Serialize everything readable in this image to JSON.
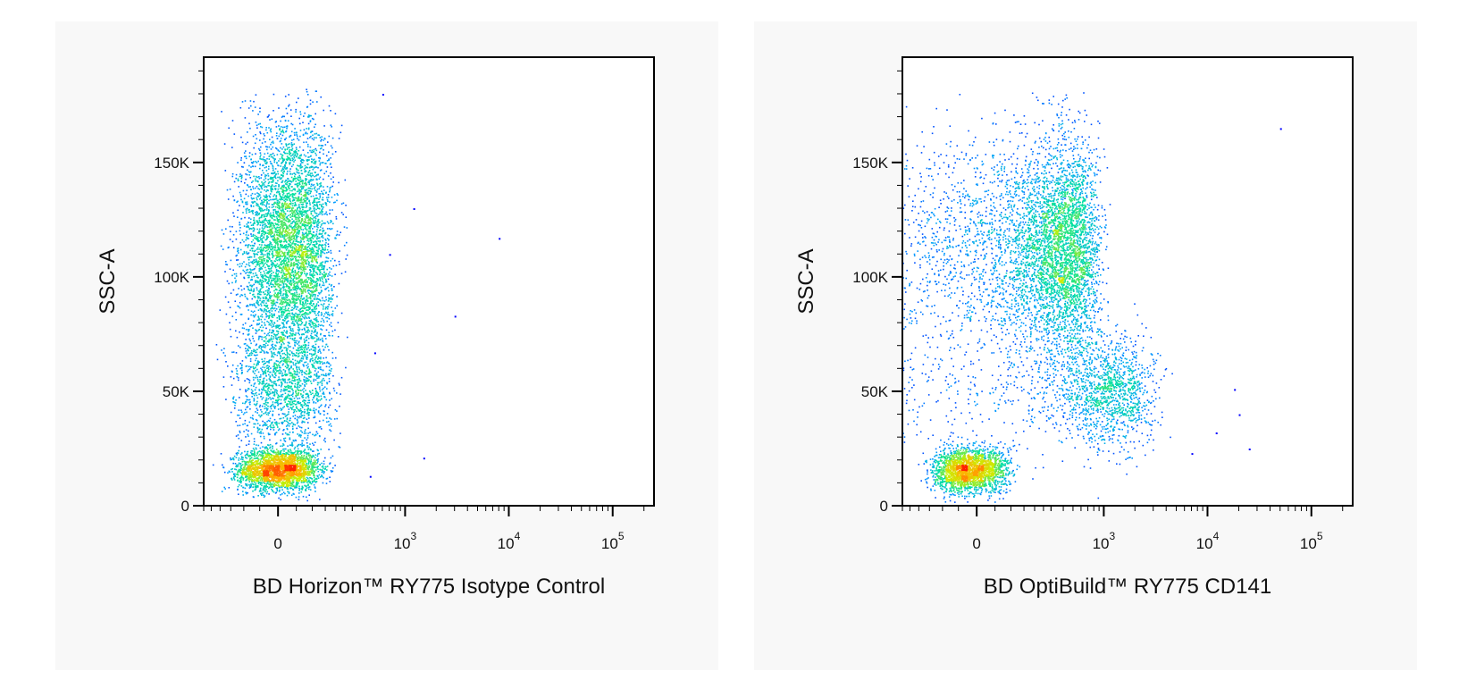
{
  "chart_data": [
    {
      "type": "scatter",
      "subtype": "density-dot-plot",
      "xlabel": "BD Horizon™ RY775 Isotype Control",
      "ylabel": "SSC-A",
      "x_scale": "biexponential",
      "xticks": [
        {
          "value": 0,
          "base": "0",
          "exp": ""
        },
        {
          "value": 1000,
          "base": "10",
          "exp": "3"
        },
        {
          "value": 10000,
          "base": "10",
          "exp": "4"
        },
        {
          "value": 100000,
          "base": "10",
          "exp": "5"
        }
      ],
      "yticks": [
        {
          "value": 0,
          "label": "0"
        },
        {
          "value": 50000,
          "label": "50K"
        },
        {
          "value": 100000,
          "label": "100K"
        },
        {
          "value": 150000,
          "label": "150K"
        }
      ],
      "ylim": [
        0,
        196000
      ],
      "grid": false,
      "colormap": [
        "#0000ff",
        "#00a0ff",
        "#00e0a0",
        "#c8f000",
        "#ffb000",
        "#ff2000"
      ],
      "populations": [
        {
          "x_center": 0,
          "x_spread": 60,
          "y_center": 16000,
          "y_spread": 4500,
          "weight": 0.28
        },
        {
          "x_center": 30,
          "x_spread": 70,
          "y_center": 112000,
          "y_spread": 28000,
          "weight": 0.58
        },
        {
          "x_center": 20,
          "x_spread": 75,
          "y_center": 50000,
          "y_spread": 14000,
          "weight": 0.14
        }
      ],
      "outliers": [
        {
          "x": 600,
          "y": 180000
        },
        {
          "x": 1200,
          "y": 130000
        },
        {
          "x": 8000,
          "y": 117000
        },
        {
          "x": 3000,
          "y": 83000
        },
        {
          "x": 1500,
          "y": 21000
        },
        {
          "x": 500,
          "y": 67000
        },
        {
          "x": 700,
          "y": 110000
        },
        {
          "x": 450,
          "y": 13000
        }
      ]
    },
    {
      "type": "scatter",
      "subtype": "density-dot-plot",
      "xlabel": "BD OptiBuild™ RY775 CD141",
      "ylabel": "SSC-A",
      "x_scale": "biexponential",
      "xticks": [
        {
          "value": 0,
          "base": "0",
          "exp": ""
        },
        {
          "value": 1000,
          "base": "10",
          "exp": "3"
        },
        {
          "value": 10000,
          "base": "10",
          "exp": "4"
        },
        {
          "value": 100000,
          "base": "10",
          "exp": "5"
        }
      ],
      "yticks": [
        {
          "value": 0,
          "label": "0"
        },
        {
          "value": 50000,
          "label": "50K"
        },
        {
          "value": 100000,
          "label": "100K"
        },
        {
          "value": 150000,
          "label": "150K"
        }
      ],
      "ylim": [
        0,
        196000
      ],
      "grid": false,
      "colormap": [
        "#0000ff",
        "#00a0ff",
        "#00e0a0",
        "#c8f000",
        "#ffb000",
        "#ff2000"
      ],
      "populations": [
        {
          "x_center": -20,
          "x_spread": 55,
          "y_center": 16000,
          "y_spread": 5000,
          "weight": 0.25
        },
        {
          "x_center": 300,
          "x_spread": 260,
          "y_center": 112000,
          "y_spread": 24000,
          "weight": 0.57
        },
        {
          "x_center": 900,
          "x_spread": 900,
          "y_center": 50000,
          "y_spread": 12000,
          "weight": 0.18
        }
      ],
      "outliers": [
        {
          "x": 50000,
          "y": 165000
        },
        {
          "x": 20000,
          "y": 40000
        },
        {
          "x": 25000,
          "y": 25000
        },
        {
          "x": 18000,
          "y": 51000
        },
        {
          "x": 12000,
          "y": 32000
        },
        {
          "x": 7000,
          "y": 23000
        }
      ]
    }
  ]
}
